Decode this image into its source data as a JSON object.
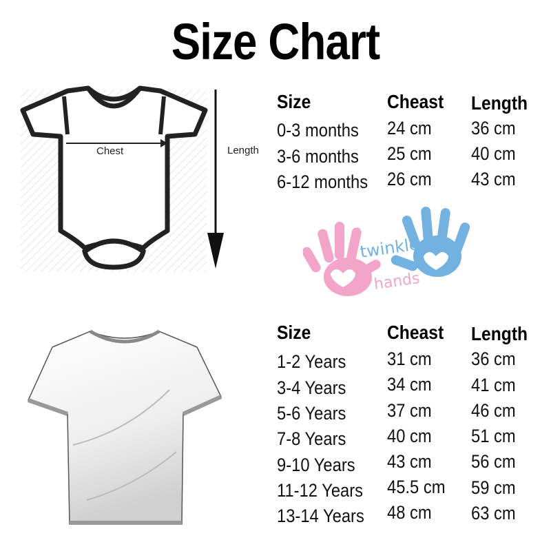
{
  "title": "Size Chart",
  "diagram": {
    "chest_label": "Chest",
    "length_label": "Length"
  },
  "baby_table": {
    "headers": [
      "Size",
      "Cheast",
      "Length"
    ],
    "rows": [
      [
        "0-3 months",
        "24 cm",
        "36 cm"
      ],
      [
        "3-6 months",
        "25 cm",
        "40 cm"
      ],
      [
        "6-12 months",
        "26 cm",
        "43 cm"
      ]
    ]
  },
  "kids_table": {
    "headers": [
      "Size",
      "Cheast",
      "Length"
    ],
    "rows": [
      [
        "1-2 Years",
        "31 cm",
        "36 cm"
      ],
      [
        "3-4 Years",
        "34 cm",
        "41 cm"
      ],
      [
        "5-6 Years",
        "37 cm",
        "46 cm"
      ],
      [
        "7-8 Years",
        "40 cm",
        "51 cm"
      ],
      [
        "9-10 Years",
        "43 cm",
        "56 cm"
      ],
      [
        "11-12 Years",
        "45.5 cm",
        "59 cm"
      ],
      [
        "13-14 Years",
        "48 cm",
        "63 cm"
      ]
    ]
  },
  "logo": {
    "text_line1": "twinkle",
    "text_line2": "hands",
    "colors": {
      "pink": "#f2a5c8",
      "blue": "#72b1e0"
    }
  }
}
